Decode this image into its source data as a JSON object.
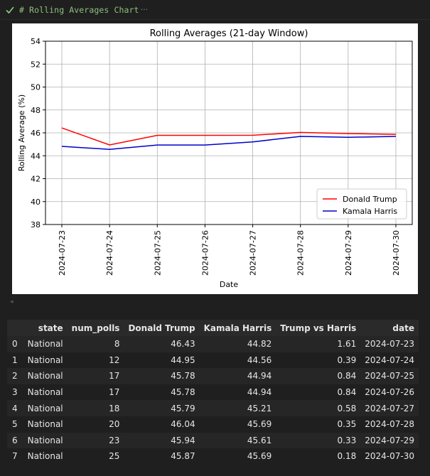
{
  "cell": {
    "title": "# Rolling Averages Chart",
    "ellipsis": "···"
  },
  "chart_data": {
    "type": "line",
    "title": "Rolling Averages (21-day Window)",
    "xlabel": "Date",
    "ylabel": "Rolling Average (%)",
    "ylim": [
      38,
      54
    ],
    "yticks": [
      "38",
      "40",
      "42",
      "44",
      "46",
      "48",
      "50",
      "52",
      "54"
    ],
    "categories": [
      "2024-07-23",
      "2024-07-24",
      "2024-07-25",
      "2024-07-26",
      "2024-07-27",
      "2024-07-28",
      "2024-07-29",
      "2024-07-30"
    ],
    "grid": true,
    "legend_position": "lower-right",
    "series": [
      {
        "name": "Donald Trump",
        "color": "#ff0000",
        "values": [
          46.43,
          44.95,
          45.78,
          45.78,
          45.79,
          46.04,
          45.94,
          45.87
        ]
      },
      {
        "name": "Kamala Harris",
        "color": "#0000cc",
        "values": [
          44.82,
          44.56,
          44.94,
          44.94,
          45.21,
          45.69,
          45.61,
          45.69
        ]
      }
    ]
  },
  "table": {
    "columns": [
      "",
      "state",
      "num_polls",
      "Donald Trump",
      "Kamala Harris",
      "Trump vs Harris",
      "date"
    ],
    "rows": [
      [
        "0",
        "National",
        "8",
        "46.43",
        "44.82",
        "1.61",
        "2024-07-23"
      ],
      [
        "1",
        "National",
        "12",
        "44.95",
        "44.56",
        "0.39",
        "2024-07-24"
      ],
      [
        "2",
        "National",
        "17",
        "45.78",
        "44.94",
        "0.84",
        "2024-07-25"
      ],
      [
        "3",
        "National",
        "17",
        "45.78",
        "44.94",
        "0.84",
        "2024-07-26"
      ],
      [
        "4",
        "National",
        "18",
        "45.79",
        "45.21",
        "0.58",
        "2024-07-27"
      ],
      [
        "5",
        "National",
        "20",
        "46.04",
        "45.69",
        "0.35",
        "2024-07-28"
      ],
      [
        "6",
        "National",
        "23",
        "45.94",
        "45.61",
        "0.33",
        "2024-07-29"
      ],
      [
        "7",
        "National",
        "25",
        "45.87",
        "45.69",
        "0.18",
        "2024-07-30"
      ]
    ]
  },
  "colors": {
    "check": "#89d185",
    "background": "#1f1f1f"
  }
}
